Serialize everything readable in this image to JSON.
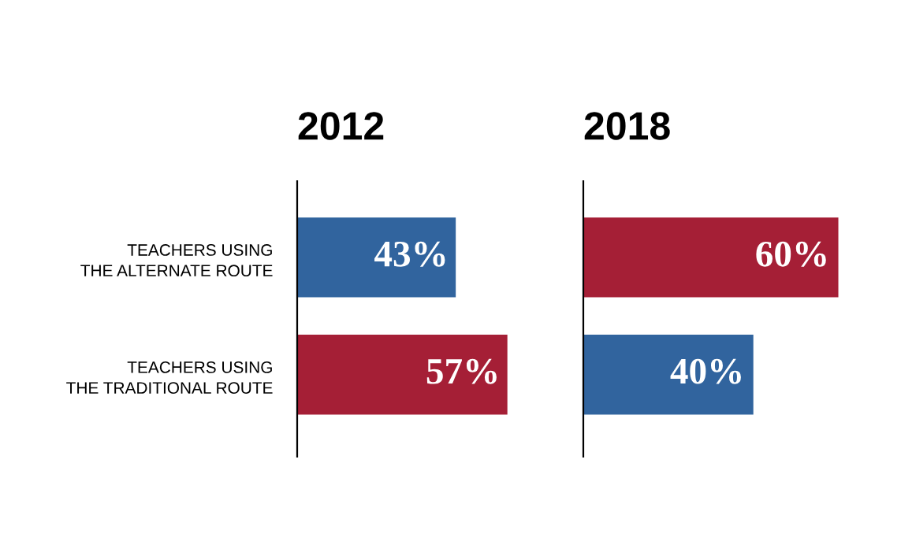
{
  "chart_data": [
    {
      "type": "bar",
      "orientation": "horizontal",
      "title": "2012",
      "categories": [
        "TEACHERS USING\nTHE ALTERNATE ROUTE",
        "TEACHERS USING\nTHE TRADITIONAL ROUTE"
      ],
      "values": [
        43,
        57
      ],
      "colors": [
        "#31649e",
        "#a51f36"
      ],
      "value_labels": [
        "43%",
        "57%"
      ],
      "tick_labels": "y"
    },
    {
      "type": "bar",
      "orientation": "horizontal",
      "title": "2018",
      "categories": [
        null,
        null
      ],
      "values": [
        60,
        40
      ],
      "colors": [
        "#a51f36",
        "#31649e"
      ],
      "value_labels": [
        "60%",
        "40%"
      ],
      "tick_labels": false
    }
  ]
}
